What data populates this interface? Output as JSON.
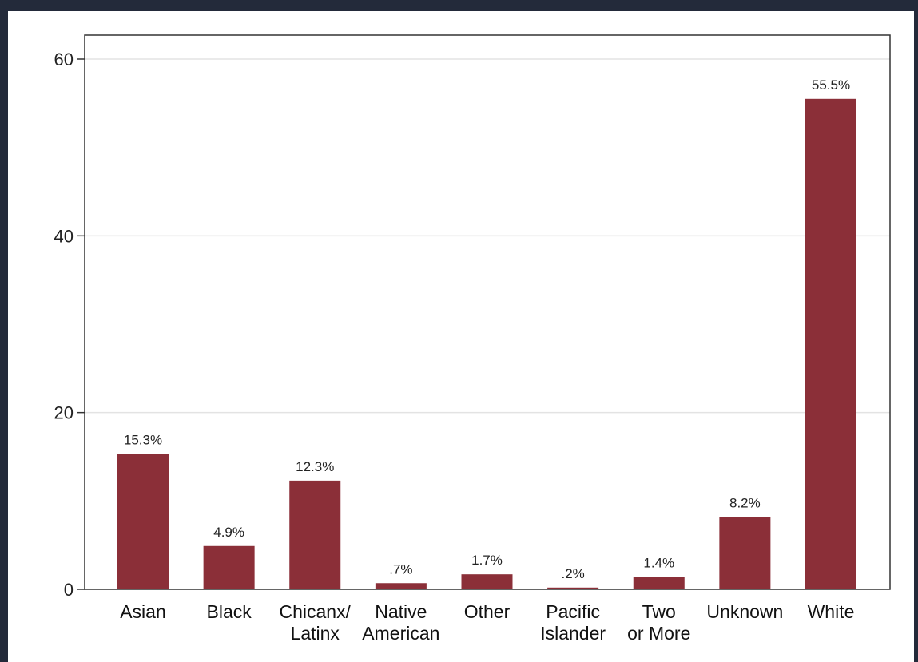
{
  "chart_data": {
    "type": "bar",
    "title": "",
    "xlabel": "",
    "ylabel": "",
    "ylim": [
      0,
      60
    ],
    "yticks": [
      0,
      20,
      40,
      60
    ],
    "grid": true,
    "legend": "none",
    "bar_color": "#8b2f38",
    "categories": [
      [
        "Asian"
      ],
      [
        "Black"
      ],
      [
        "Chicanx/",
        "Latinx"
      ],
      [
        "Native",
        "American"
      ],
      [
        "Other"
      ],
      [
        "Pacific",
        "Islander"
      ],
      [
        "Two",
        "or More"
      ],
      [
        "Unknown"
      ],
      [
        "White"
      ]
    ],
    "values": [
      15.3,
      4.9,
      12.3,
      0.7,
      1.7,
      0.2,
      1.4,
      8.2,
      55.5
    ],
    "data_labels": [
      "15.3%",
      "4.9%",
      "12.3%",
      ".7%",
      "1.7%",
      ".2%",
      "1.4%",
      "8.2%",
      "55.5%"
    ]
  }
}
